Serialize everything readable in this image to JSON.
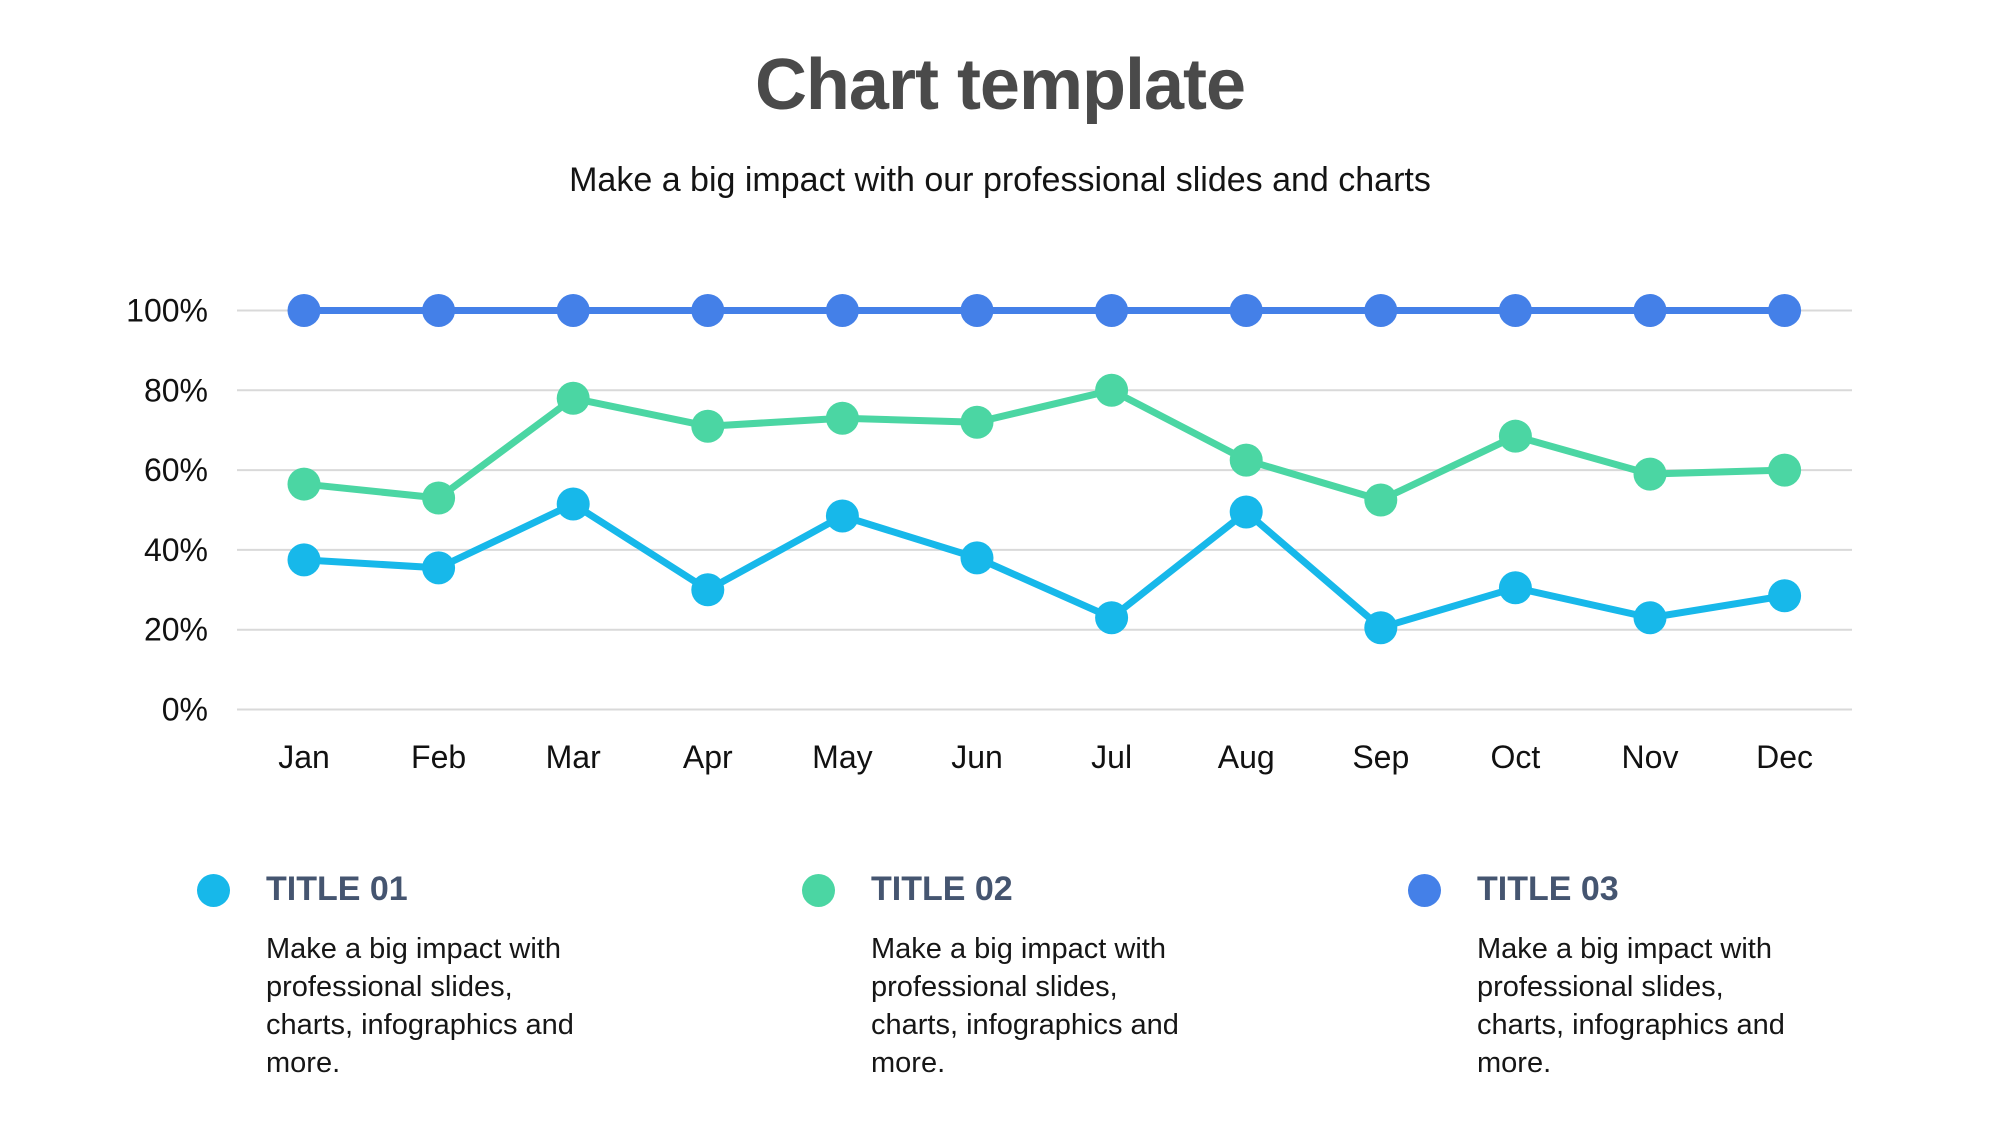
{
  "header": {
    "title": "Chart template",
    "subtitle": "Make a big impact with our professional slides and charts"
  },
  "chart_data": {
    "type": "line",
    "title": "Chart template",
    "xlabel": "",
    "ylabel": "",
    "categories": [
      "Jan",
      "Feb",
      "Mar",
      "Apr",
      "May",
      "Jun",
      "Jul",
      "Aug",
      "Sep",
      "Oct",
      "Nov",
      "Dec"
    ],
    "series": [
      {
        "name": "TITLE 01",
        "color": "#17b8ea",
        "values": [
          37.5,
          35.5,
          51.5,
          30,
          48.5,
          38,
          23,
          49.5,
          20.5,
          30.5,
          23,
          28.5
        ]
      },
      {
        "name": "TITLE 02",
        "color": "#4bd6a3",
        "values": [
          56.5,
          53,
          78,
          71,
          73,
          72,
          80,
          62.5,
          52.5,
          68.5,
          59,
          60
        ]
      },
      {
        "name": "TITLE 03",
        "color": "#4480e8",
        "values": [
          100,
          100,
          100,
          100,
          100,
          100,
          100,
          100,
          100,
          100,
          100,
          100
        ]
      }
    ],
    "ylim": [
      0,
      100
    ],
    "yticks": [
      0,
      20,
      40,
      60,
      80,
      100
    ],
    "ytick_labels": [
      "0%",
      "20%",
      "40%",
      "60%",
      "80%",
      "100%"
    ],
    "grid": true,
    "legend_position": "bottom"
  },
  "legend": {
    "items": [
      {
        "title": "TITLE 01",
        "color": "#17b8ea",
        "description": "Make a big impact with\nprofessional slides,\ncharts, infographics and\nmore."
      },
      {
        "title": "TITLE 02",
        "color": "#4bd6a3",
        "description": "Make a big impact with\nprofessional slides,\ncharts, infographics and\nmore."
      },
      {
        "title": "TITLE 03",
        "color": "#4480e8",
        "description": "Make a big impact with\nprofessional slides,\ncharts, infographics and\nmore."
      }
    ]
  },
  "colors": {
    "series_cyan": "#17b8ea",
    "series_green": "#4bd6a3",
    "series_blue": "#4480e8",
    "title_text": "#4a4a4a",
    "subtitle_text": "#141414",
    "legend_title_text": "#455570",
    "axis_text": "#111111",
    "gridline": "#d9d9d9",
    "background": "#ffffff"
  }
}
